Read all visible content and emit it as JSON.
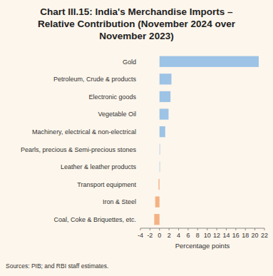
{
  "chart_data": {
    "type": "bar",
    "orientation": "horizontal",
    "title": "Chart III.15: India's Merchandise Imports – Relative Contribution (November 2024 over November 2023)",
    "categories": [
      "Gold",
      "Petroleum, Crude & products",
      "Electronic goods",
      "Vegetable Oil",
      "Machinery, electrical & non-electrical",
      "Pearls, precious & Semi-precious stones",
      "Leather & leather products",
      "Transport equipment",
      "Iron & Steel",
      "Coal, Coke & Briquettes, etc."
    ],
    "values": [
      20.8,
      2.5,
      2.3,
      1.9,
      1.2,
      0.1,
      0.05,
      -0.2,
      -0.9,
      -1.1
    ],
    "colors": [
      "#9dc3e6",
      "#9dc3e6",
      "#9dc3e6",
      "#9dc3e6",
      "#9dc3e6",
      "#9dc3e6",
      "#9dc3e6",
      "#f4b183",
      "#f4b183",
      "#f4b183"
    ],
    "xlim": [
      -4,
      22
    ],
    "xticks": [
      -4,
      -2,
      0,
      2,
      4,
      6,
      8,
      10,
      12,
      14,
      16,
      18,
      20,
      22
    ],
    "xlabel": "Percentage points",
    "source": "Sources: PIB; and RBI staff estimates.",
    "grid": false
  }
}
